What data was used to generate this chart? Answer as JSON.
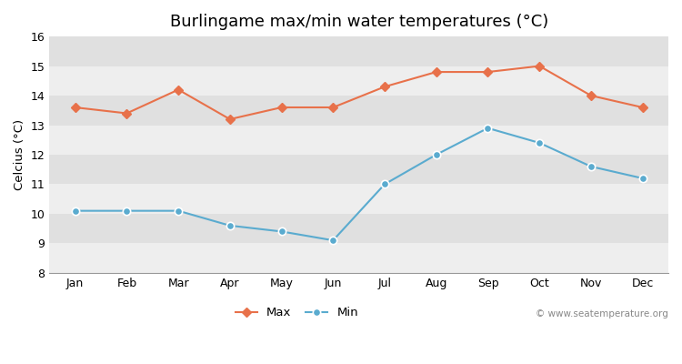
{
  "title": "Burlingame max/min water temperatures (°C)",
  "ylabel": "Celcius (°C)",
  "months": [
    "Jan",
    "Feb",
    "Mar",
    "Apr",
    "May",
    "Jun",
    "Jul",
    "Aug",
    "Sep",
    "Oct",
    "Nov",
    "Dec"
  ],
  "max_temps": [
    13.6,
    13.4,
    14.2,
    13.2,
    13.6,
    13.6,
    14.3,
    14.8,
    14.8,
    15.0,
    14.0,
    13.6
  ],
  "min_temps": [
    10.1,
    10.1,
    10.1,
    9.6,
    9.4,
    9.1,
    11.0,
    12.0,
    12.9,
    12.4,
    11.6,
    11.2
  ],
  "max_color": "#e8714a",
  "min_color": "#5aabcf",
  "fig_bg_color": "#ffffff",
  "plot_bg_color": "#e8e8e8",
  "band_color_light": "#eeeeee",
  "band_color_dark": "#e0e0e0",
  "grid_color": "#ffffff",
  "ylim": [
    8,
    16
  ],
  "yticks": [
    8,
    9,
    10,
    11,
    12,
    13,
    14,
    15,
    16
  ],
  "watermark": "© www.seatemperature.org",
  "legend_labels": [
    "Max",
    "Min"
  ],
  "title_fontsize": 13,
  "label_fontsize": 9.5,
  "tick_fontsize": 9,
  "watermark_fontsize": 7.5
}
